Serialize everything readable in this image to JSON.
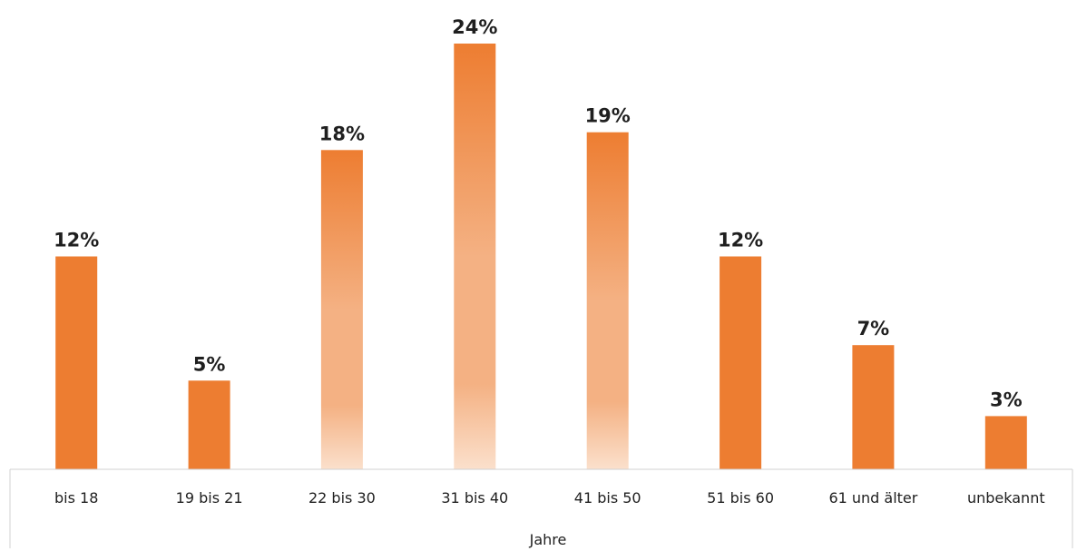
{
  "chart_data": {
    "type": "bar",
    "categories": [
      "bis 18",
      "19 bis 21",
      "22 bis 30",
      "31 bis 40",
      "41 bis 50",
      "51 bis 60",
      "61 und älter",
      "unbekannt"
    ],
    "values": [
      12,
      5,
      18,
      24,
      19,
      12,
      7,
      3
    ],
    "data_labels": [
      "12%",
      "5%",
      "18%",
      "24%",
      "19%",
      "12%",
      "7%",
      "3%"
    ],
    "unit": "%",
    "xlabel": "Jahre",
    "ylabel": "",
    "title": "",
    "ylim": [
      0,
      24
    ],
    "grid": false,
    "legend": "none",
    "colors": {
      "solid": "#ed7d31",
      "gradient_top": "#ed7d31",
      "gradient_mid": "#f4b183",
      "gradient_bottom": "#fbe0cc",
      "axis": "#d0d0d0",
      "text": "#1f1f1f"
    },
    "gradient_bars": [
      2,
      3,
      4
    ]
  }
}
